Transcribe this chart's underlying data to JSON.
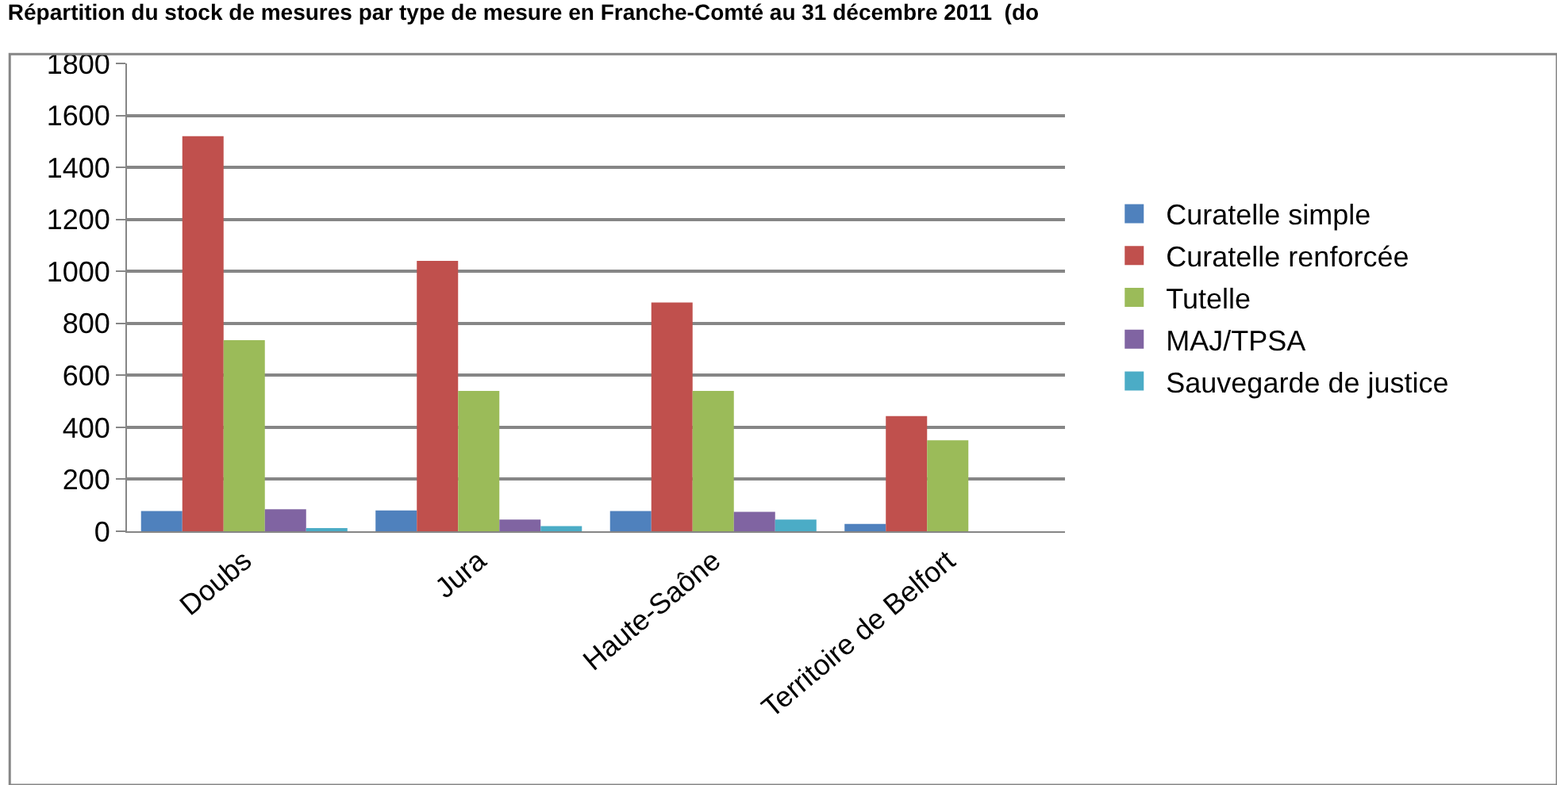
{
  "chart_data": {
    "type": "bar",
    "title": "Répartition du stock de mesures par type de mesure en Franche-Comté au 31 décembre 2011  (do",
    "categories": [
      "Doubs",
      "Jura",
      "Haute-Saône",
      "Territoire de Belfort"
    ],
    "series": [
      {
        "name": "Curatelle simple",
        "color": "#4f81bd",
        "values": [
          78,
          80,
          78,
          28
        ]
      },
      {
        "name": "Curatelle renforcée",
        "color": "#c0504d",
        "values": [
          1520,
          1040,
          880,
          443
        ]
      },
      {
        "name": "Tutelle",
        "color": "#9bbb59",
        "values": [
          735,
          540,
          540,
          350
        ]
      },
      {
        "name": "MAJ/TPSA",
        "color": "#8064a2",
        "values": [
          85,
          45,
          75,
          0
        ]
      },
      {
        "name": "Sauvegarde de justice",
        "color": "#4bacc6",
        "values": [
          10,
          20,
          45,
          0
        ]
      }
    ],
    "ylim": [
      0,
      1800
    ],
    "yticks": [
      0,
      200,
      400,
      600,
      800,
      1000,
      1200,
      1400,
      1600,
      1800
    ],
    "grid": "y",
    "legend": "right"
  }
}
